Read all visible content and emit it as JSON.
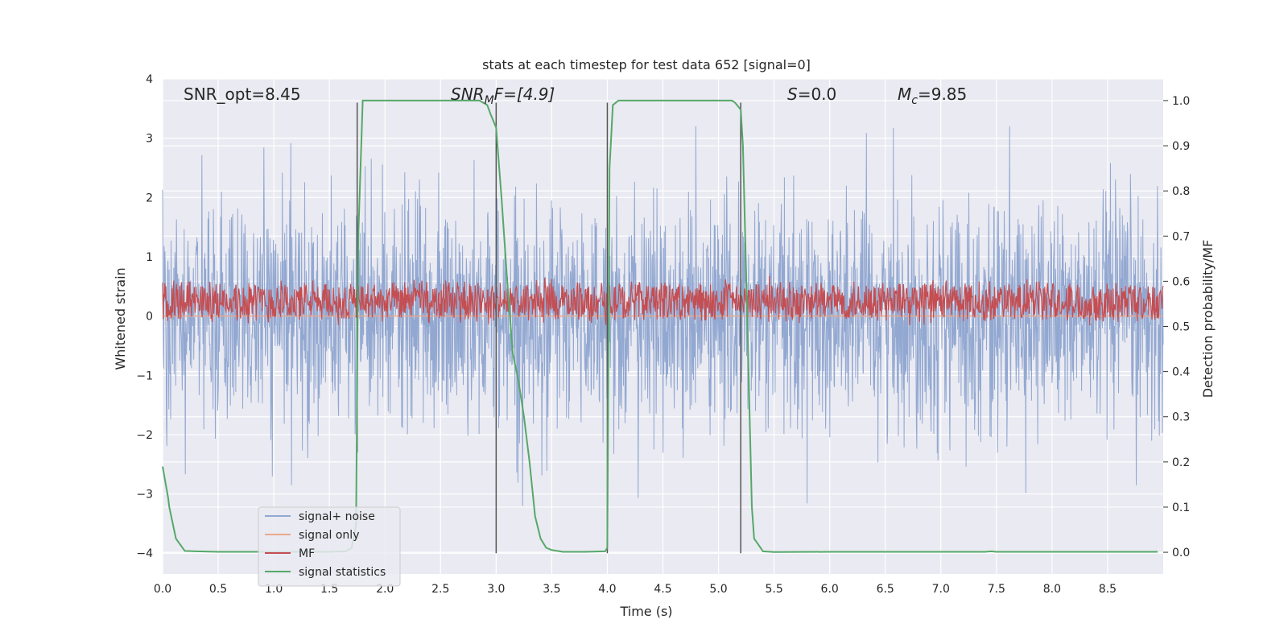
{
  "chart_data": {
    "type": "line",
    "title": "stats at each timestep for test data 652 [signal=0]",
    "xlabel": "Time (s)",
    "ylabel_left": "Whitened strain",
    "ylabel_right": "Detection probability/MF",
    "xlim": [
      0,
      9.0
    ],
    "ylim_left": [
      -4.35,
      4.0
    ],
    "ylim_right": [
      -0.048,
      1.048
    ],
    "x_ticks": [
      0.0,
      0.5,
      1.0,
      1.5,
      2.0,
      2.5,
      3.0,
      3.5,
      4.0,
      4.5,
      5.0,
      5.5,
      6.0,
      6.5,
      7.0,
      7.5,
      8.0,
      8.5
    ],
    "x_tick_labels": [
      "0.0",
      "0.5",
      "1.0",
      "1.5",
      "2.0",
      "2.5",
      "3.0",
      "3.5",
      "4.0",
      "4.5",
      "5.0",
      "5.5",
      "6.0",
      "6.5",
      "7.0",
      "7.5",
      "8.0",
      "8.5"
    ],
    "y_left_ticks": [
      -4,
      -3,
      -2,
      -1,
      0,
      1,
      2,
      3,
      4
    ],
    "y_left_tick_labels": [
      "−4",
      "−3",
      "−2",
      "−1",
      "0",
      "1",
      "2",
      "3",
      "4"
    ],
    "y_right_ticks": [
      0.0,
      0.1,
      0.2,
      0.3,
      0.4,
      0.5,
      0.6,
      0.7,
      0.8,
      0.9,
      1.0
    ],
    "y_right_tick_labels": [
      "0.0",
      "0.1",
      "0.2",
      "0.3",
      "0.4",
      "0.5",
      "0.6",
      "0.7",
      "0.8",
      "0.9",
      "1.0"
    ],
    "annotations": {
      "snr_opt": "SNR_opt=8.45",
      "snr_mf_main": "SNR",
      "snr_mf_sub": "M",
      "snr_mf_rest": "F=[4.9]",
      "s_main": "S",
      "s_rest": "=0.0",
      "mc_main": "M",
      "mc_sub": "c",
      "mc_rest": "=9.85"
    },
    "vertical_markers": [
      {
        "x": 1.75,
        "y_top": 3.6,
        "y_bottom": -2.3
      },
      {
        "x": 3.0,
        "y_top": 3.6,
        "y_bottom": -4.0
      },
      {
        "x": 4.0,
        "y_top": 3.6,
        "y_bottom": -4.0
      },
      {
        "x": 5.2,
        "y_top": 3.6,
        "y_bottom": -4.0
      }
    ],
    "series": [
      {
        "name": "signal+ noise",
        "color": "#92a8d1",
        "axis": "left",
        "kind": "noise",
        "amplitude_sigma": 0.95,
        "range": [
          -3.6,
          3.2
        ]
      },
      {
        "name": "signal only",
        "color": "#e8a88a",
        "axis": "left",
        "kind": "flat",
        "value": 0.0
      },
      {
        "name": "MF",
        "color": "#c44e52",
        "axis": "right",
        "kind": "band",
        "center": 0.555,
        "half_width": 0.04,
        "max": 0.62
      },
      {
        "name": "signal statistics",
        "color": "#55a868",
        "axis": "right",
        "kind": "line",
        "x": [
          0.0,
          0.05,
          0.06,
          0.12,
          0.2,
          0.3,
          0.5,
          1.0,
          1.5,
          1.65,
          1.7,
          1.74,
          1.76,
          1.8,
          1.82,
          2.0,
          2.5,
          2.85,
          2.92,
          2.95,
          3.0,
          3.05,
          3.1,
          3.15,
          3.2,
          3.25,
          3.3,
          3.35,
          3.4,
          3.45,
          3.5,
          3.55,
          3.6,
          3.8,
          3.98,
          4.0,
          4.02,
          4.05,
          4.1,
          4.15,
          4.2,
          4.5,
          5.0,
          5.12,
          5.15,
          5.2,
          5.22,
          5.25,
          5.3,
          5.32,
          5.35,
          5.4,
          5.5,
          6.0,
          7.0,
          7.4,
          7.45,
          7.5,
          8.0,
          8.5,
          8.95
        ],
        "values": [
          0.19,
          0.12,
          0.1,
          0.03,
          0.003,
          0.002,
          0.001,
          0.001,
          0.001,
          0.002,
          0.01,
          0.06,
          0.7,
          1.0,
          1.0,
          1.0,
          1.0,
          1.0,
          0.99,
          0.97,
          0.94,
          0.78,
          0.6,
          0.44,
          0.38,
          0.3,
          0.2,
          0.08,
          0.03,
          0.01,
          0.005,
          0.003,
          0.001,
          0.001,
          0.002,
          0.01,
          0.85,
          0.99,
          1.0,
          1.0,
          1.0,
          1.0,
          1.0,
          1.0,
          0.995,
          0.98,
          0.9,
          0.6,
          0.1,
          0.03,
          0.02,
          0.002,
          0.0005,
          0.001,
          0.001,
          0.001,
          0.002,
          0.001,
          0.001,
          0.001,
          0.001
        ]
      }
    ],
    "legend": {
      "location": "lower-left",
      "entries": [
        {
          "label": "signal+ noise",
          "color": "#92a8d1"
        },
        {
          "label": "signal only",
          "color": "#e8a88a"
        },
        {
          "label": "MF",
          "color": "#c44e52"
        },
        {
          "label": "signal statistics",
          "color": "#55a868"
        }
      ]
    },
    "style": {
      "plot_bg": "#eaeaf2",
      "grid_color": "#ffffff",
      "marker_color": "#555555"
    }
  }
}
